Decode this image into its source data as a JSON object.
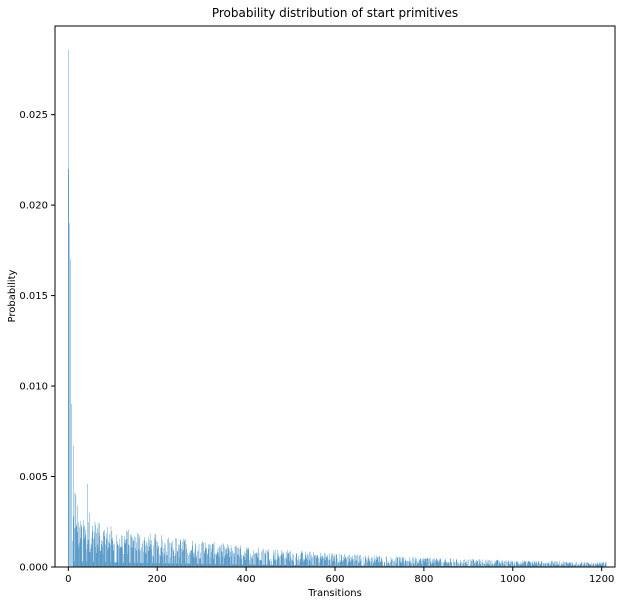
{
  "chart_data": {
    "type": "bar",
    "title": "Probability distribution of start primitives",
    "xlabel": "Transitions",
    "ylabel": "Probability",
    "xlim": [
      -30,
      1230
    ],
    "ylim": [
      0,
      0.0299
    ],
    "x_ticks": [
      0,
      200,
      400,
      600,
      800,
      1000,
      1200
    ],
    "y_ticks": [
      0.0,
      0.005,
      0.01,
      0.015,
      0.02,
      0.025
    ],
    "x_tick_labels": [
      "0",
      "200",
      "400",
      "600",
      "800",
      "1000",
      "1200"
    ],
    "y_tick_labels": [
      "0.000",
      "0.005",
      "0.010",
      "0.015",
      "0.020",
      "0.025"
    ],
    "grid": false,
    "bar_color": "#1f77b4",
    "n_bars": 1211,
    "highlighted_points": [
      {
        "x": 0,
        "y": 0.022
      },
      {
        "x": 1,
        "y": 0.0286
      },
      {
        "x": 3,
        "y": 0.019
      },
      {
        "x": 5,
        "y": 0.017
      },
      {
        "x": 7,
        "y": 0.009
      },
      {
        "x": 12,
        "y": 0.0067
      },
      {
        "x": 15,
        "y": 0.0041
      },
      {
        "x": 17,
        "y": 0.004
      },
      {
        "x": 20,
        "y": 0.0034
      },
      {
        "x": 30,
        "y": 0.0022
      },
      {
        "x": 43,
        "y": 0.0046
      },
      {
        "x": 48,
        "y": 0.003
      },
      {
        "x": 60,
        "y": 0.0025
      },
      {
        "x": 70,
        "y": 0.0024
      },
      {
        "x": 80,
        "y": 0.002
      },
      {
        "x": 100,
        "y": 0.0016
      },
      {
        "x": 140,
        "y": 0.0018
      },
      {
        "x": 200,
        "y": 0.0014
      },
      {
        "x": 300,
        "y": 0.0013
      },
      {
        "x": 400,
        "y": 0.0011
      },
      {
        "x": 500,
        "y": 0.0009
      },
      {
        "x": 600,
        "y": 0.0007
      },
      {
        "x": 700,
        "y": 0.0006
      },
      {
        "x": 800,
        "y": 0.0005
      },
      {
        "x": 900,
        "y": 0.0004
      },
      {
        "x": 1000,
        "y": 0.0003
      },
      {
        "x": 1100,
        "y": 0.0003
      },
      {
        "x": 1200,
        "y": 0.0002
      }
    ]
  }
}
